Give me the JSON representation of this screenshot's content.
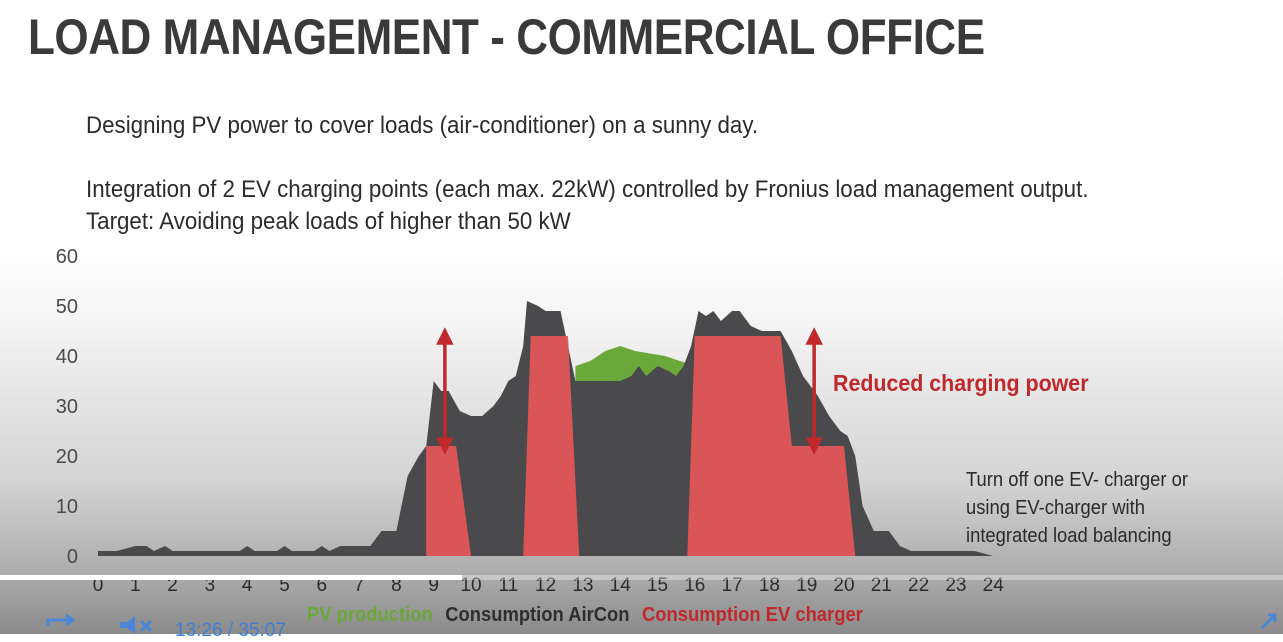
{
  "slide": {
    "title": "LOAD MANAGEMENT - COMMERCIAL OFFICE",
    "line1": "Designing PV power to cover loads (air-conditioner) on a sunny day.",
    "line2": "Integration of 2 EV charging points (each max. 22kW) controlled by Fronius load management output.",
    "line3": "Target: Avoiding peak loads of higher than 50 kW",
    "callout": "Reduced charging power",
    "note": "Turn off one EV- charger or using EV-charger with integrated load balancing"
  },
  "legend": {
    "pv": "PV production",
    "aircon": "Consumption AirCon",
    "ev": "Consumption EV charger"
  },
  "colors": {
    "pv": "#6aa83a",
    "aircon": "#4a4a4c",
    "ev": "#e05558",
    "arrow": "#c0282b"
  },
  "player": {
    "time_current": "13:26",
    "time_separator": "/",
    "time_total": "35:07",
    "progress": 0.36
  },
  "chart_data": {
    "type": "area",
    "ylim": [
      0,
      60
    ],
    "yticks": [
      "0",
      "10",
      "20",
      "30",
      "40",
      "50",
      "60"
    ],
    "xlim": [
      0,
      24
    ],
    "xticks": [
      "0",
      "1",
      "2",
      "3",
      "4",
      "5",
      "6",
      "7",
      "8",
      "9",
      "10",
      "11",
      "12",
      "13",
      "14",
      "15",
      "16",
      "17",
      "18",
      "19",
      "20",
      "21",
      "22",
      "23",
      "24"
    ],
    "series": [
      {
        "name": "Consumption AirCon",
        "points": [
          [
            0,
            1
          ],
          [
            0.5,
            1
          ],
          [
            1,
            2
          ],
          [
            1.3,
            2
          ],
          [
            1.5,
            1
          ],
          [
            1.8,
            2
          ],
          [
            2,
            1
          ],
          [
            3,
            1
          ],
          [
            3.8,
            1
          ],
          [
            4,
            2
          ],
          [
            4.2,
            1
          ],
          [
            4.8,
            1
          ],
          [
            5,
            2
          ],
          [
            5.2,
            1
          ],
          [
            5.8,
            1
          ],
          [
            6,
            2
          ],
          [
            6.2,
            1
          ],
          [
            6.5,
            2
          ],
          [
            7,
            2
          ],
          [
            7.3,
            2
          ],
          [
            7.6,
            5
          ],
          [
            8,
            5
          ],
          [
            8.3,
            16
          ],
          [
            8.6,
            20
          ],
          [
            8.8,
            22
          ],
          [
            9,
            35
          ],
          [
            9.2,
            33
          ],
          [
            9.4,
            33
          ],
          [
            9.7,
            29
          ],
          [
            10,
            28
          ],
          [
            10.3,
            28
          ],
          [
            10.6,
            30
          ],
          [
            10.8,
            32
          ],
          [
            11,
            35
          ],
          [
            11.2,
            36
          ],
          [
            11.4,
            42
          ],
          [
            11.5,
            51
          ],
          [
            11.8,
            50
          ],
          [
            12,
            49
          ],
          [
            12.4,
            49
          ],
          [
            12.6,
            42
          ],
          [
            12.8,
            35
          ],
          [
            13.1,
            35
          ],
          [
            14,
            35
          ],
          [
            14.3,
            36
          ],
          [
            14.5,
            38
          ],
          [
            14.7,
            36
          ],
          [
            15,
            38
          ],
          [
            15.3,
            37
          ],
          [
            15.5,
            36
          ],
          [
            15.7,
            38
          ],
          [
            15.9,
            42
          ],
          [
            16.1,
            49
          ],
          [
            16.3,
            48
          ],
          [
            16.5,
            49
          ],
          [
            16.7,
            47
          ],
          [
            17,
            49
          ],
          [
            17.2,
            49
          ],
          [
            17.5,
            46
          ],
          [
            17.8,
            45
          ],
          [
            18.3,
            45
          ],
          [
            18.6,
            41
          ],
          [
            18.9,
            36
          ],
          [
            19.3,
            32
          ],
          [
            19.6,
            28
          ],
          [
            19.9,
            25
          ],
          [
            20.1,
            24
          ],
          [
            20.3,
            20
          ],
          [
            20.5,
            10
          ],
          [
            20.8,
            5
          ],
          [
            21.2,
            5
          ],
          [
            21.5,
            2
          ],
          [
            21.8,
            1
          ],
          [
            22.5,
            1
          ],
          [
            23.5,
            1
          ],
          [
            24,
            0
          ]
        ]
      },
      {
        "name": "PV production",
        "points": [
          [
            12.8,
            38
          ],
          [
            13.2,
            39
          ],
          [
            13.6,
            41
          ],
          [
            14,
            42
          ],
          [
            14.4,
            41
          ],
          [
            14.8,
            40.5
          ],
          [
            15.2,
            40
          ],
          [
            15.6,
            39
          ],
          [
            16,
            38
          ]
        ]
      },
      {
        "name": "Consumption EV charger",
        "segments": [
          [
            [
              8.8,
              0
            ],
            [
              8.8,
              22
            ],
            [
              9.6,
              22
            ],
            [
              10,
              0
            ]
          ],
          [
            [
              11.4,
              0
            ],
            [
              11.6,
              44
            ],
            [
              12.6,
              44
            ],
            [
              12.9,
              0
            ]
          ],
          [
            [
              15.8,
              0
            ],
            [
              16,
              44
            ],
            [
              17.6,
              44
            ],
            [
              18.3,
              44
            ],
            [
              18.6,
              22
            ],
            [
              20,
              22
            ],
            [
              20.3,
              0
            ]
          ]
        ]
      }
    ],
    "arrows": [
      {
        "x": 9.3,
        "from": 44,
        "to": 22
      },
      {
        "x": 19.2,
        "from": 44,
        "to": 22
      }
    ]
  }
}
